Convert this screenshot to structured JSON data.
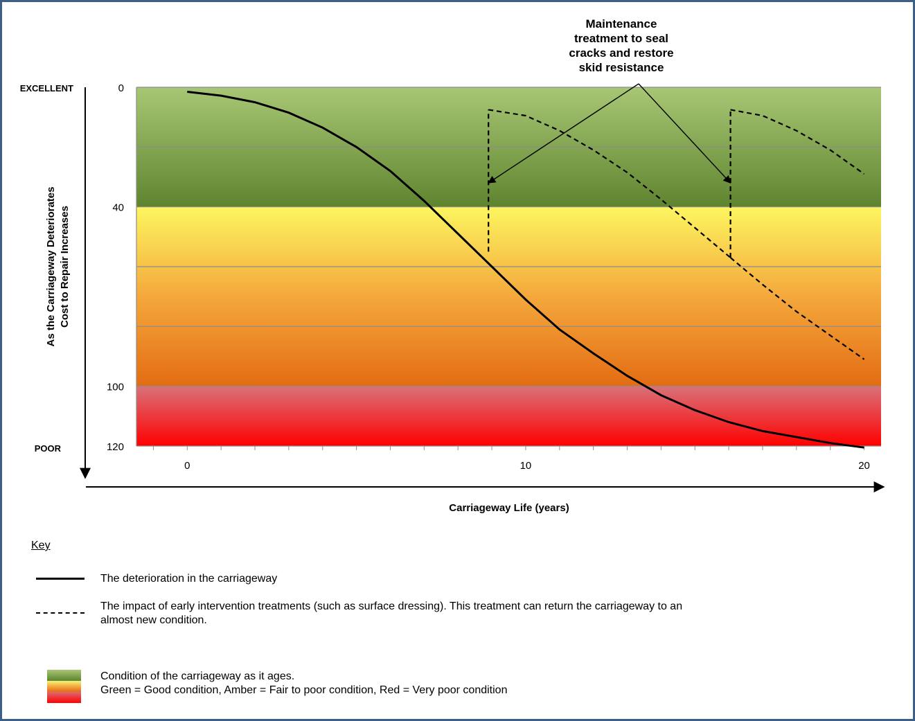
{
  "colors": {
    "frame": "#3c5f8a",
    "green_top": "#a8c775",
    "green_bottom": "#5f842f",
    "yellow": "#fdf660",
    "amber": "#f4a83c",
    "orange": "#e36c13",
    "red_top": "#d8737a",
    "red_bottom": "#ff0000"
  },
  "chart_data": {
    "type": "line",
    "xlabel": "Carriageway Life (years)",
    "ylabel_line1": "As the Carriageway Deteriorates",
    "ylabel_line2": "Cost to Repair Increases",
    "y_end_labels": {
      "top": "EXCELLENT",
      "bottom": "POOR"
    },
    "xlim": [
      -1.5,
      20.5
    ],
    "ylim": [
      0,
      120
    ],
    "y_inverted": true,
    "x_tick_labels": [
      {
        "value": 0,
        "label": "0"
      },
      {
        "value": 10,
        "label": "10"
      },
      {
        "value": 20,
        "label": "20"
      }
    ],
    "y_tick_labels": [
      {
        "value": 0,
        "label": "0"
      },
      {
        "value": 40,
        "label": "40"
      },
      {
        "value": 100,
        "label": "100"
      },
      {
        "value": 120,
        "label": "120"
      }
    ],
    "gridlines_y": [
      20,
      40,
      60,
      80,
      100
    ],
    "bands": [
      {
        "from": 0,
        "to": 40,
        "color": "green"
      },
      {
        "from": 40,
        "to": 100,
        "color": "amber"
      },
      {
        "from": 100,
        "to": 120,
        "color": "red"
      }
    ],
    "series": [
      {
        "style": "solid",
        "x": [
          0,
          1,
          2,
          3,
          4,
          5,
          6,
          7,
          8,
          9,
          10,
          11,
          12,
          13,
          14,
          15,
          16,
          17,
          18,
          19,
          20
        ],
        "y": [
          1.5,
          2.8,
          5,
          8.5,
          13.5,
          20,
          28,
          38,
          49,
          60,
          71,
          81,
          89,
          96.5,
          103,
          108,
          112,
          115,
          117,
          119,
          120.5
        ]
      },
      {
        "style": "dashed",
        "segments": [
          {
            "x": [
              8.9,
              8.9
            ],
            "y": [
              55,
              7.5
            ]
          },
          {
            "x": [
              8.9,
              10,
              11,
              12,
              13,
              14,
              15,
              16.05
            ],
            "y": [
              7.5,
              9.5,
              14.5,
              21,
              28.5,
              37.5,
              47,
              57
            ]
          },
          {
            "x": [
              16.05,
              16.05
            ],
            "y": [
              57,
              7.5
            ]
          },
          {
            "x": [
              16.05,
              17,
              18,
              19,
              20
            ],
            "y": [
              7.5,
              9.5,
              14.5,
              21,
              29
            ]
          },
          {
            "x": [
              16.05,
              17,
              18,
              19,
              20
            ],
            "y": [
              57,
              66,
              75,
              83,
              91
            ]
          }
        ]
      }
    ],
    "annotation": {
      "lines": [
        "Maintenance",
        "treatment to seal",
        "cracks and restore",
        "skid resistance"
      ],
      "arrow_targets": [
        {
          "x": 8.9,
          "y": 32
        },
        {
          "x": 16.05,
          "y": 32
        }
      ]
    }
  },
  "key": {
    "title": "Key",
    "solid_text": "The deterioration in the carriageway",
    "dashed_text_line1": "The impact of early intervention treatments (such as surface dressing). This treatment can return the carriageway to an",
    "dashed_text_line2": "almost new condition.",
    "swatch_text_line1": "Condition of the carriageway as it ages.",
    "swatch_text_line2": "Green = Good condition, Amber = Fair to poor condition, Red = Very poor condition"
  }
}
